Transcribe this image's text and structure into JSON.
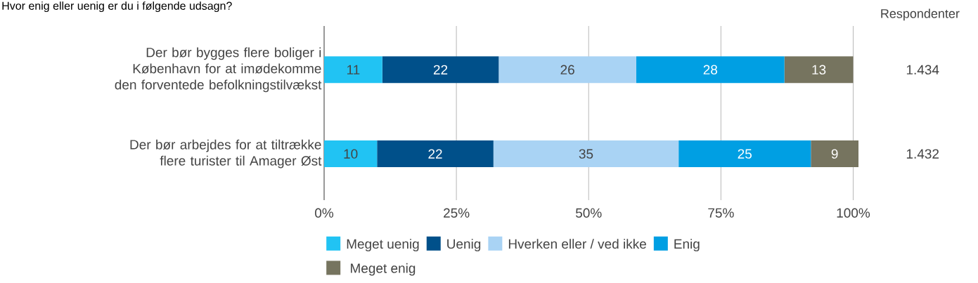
{
  "chart_data": {
    "type": "bar",
    "orientation": "horizontal",
    "stacked": true,
    "title": "Hvor enig eller uenig er du i følgende udsagn?",
    "categories": [
      "Der bør bygges flere boliger i København for at imødekomme den forventede befolkningstilvækst",
      "Der bør arbejdes for at tiltrække flere turister til Amager Øst"
    ],
    "series": [
      {
        "name": "Meget uenig",
        "color": "#21c3f3",
        "values": [
          11,
          10
        ]
      },
      {
        "name": "Uenig",
        "color": "#00508a",
        "values": [
          22,
          22
        ]
      },
      {
        "name": "Hverken eller / ved ikke",
        "color": "#a9d3f4",
        "values": [
          26,
          35
        ]
      },
      {
        "name": "Enig",
        "color": "#009fe3",
        "values": [
          28,
          25
        ]
      },
      {
        "name": "Meget enig",
        "color": "#76745f",
        "values": [
          13,
          9
        ]
      }
    ],
    "xlim": [
      0,
      101
    ],
    "xticks": [
      {
        "value": 0,
        "label": "0%"
      },
      {
        "value": 25,
        "label": "25%"
      },
      {
        "value": 50,
        "label": "50%"
      },
      {
        "value": 75,
        "label": "75%"
      },
      {
        "value": 100,
        "label": "100%"
      }
    ],
    "data_labels": true,
    "grid": "x",
    "legend": "bottom",
    "annotations": [
      "Respondenter",
      "1.434",
      "1.432"
    ]
  }
}
